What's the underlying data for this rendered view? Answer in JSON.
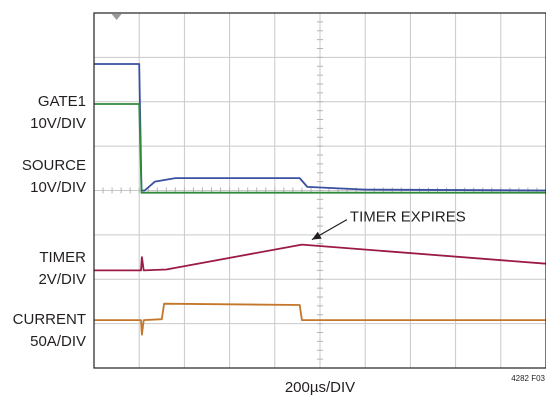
{
  "chart_data": {
    "type": "line",
    "title": "",
    "xlabel": "200µs/DIV",
    "figure_id": "4282 F03",
    "grid": true,
    "x_divisions": 10,
    "y_divisions": 8,
    "x_range_div": [
      0,
      10
    ],
    "y_range_div": [
      0,
      8
    ],
    "annotation": "TIMER EXPIRES",
    "channel_labels": [
      {
        "name": "GATE1",
        "scale": "10V/DIV"
      },
      {
        "name": "SOURCE",
        "scale": "10V/DIV"
      },
      {
        "name": "TIMER",
        "scale": "2V/DIV"
      },
      {
        "name": "CURRENT",
        "scale": "50A/DIV"
      }
    ],
    "series": [
      {
        "name": "GATE1",
        "color": "#3a4fa0",
        "x_div": [
          0,
          1.0,
          1.05,
          1.12,
          1.35,
          1.8,
          4.55,
          4.72,
          6.0,
          10
        ],
        "y_div": [
          6.85,
          6.85,
          4.0,
          4.0,
          4.2,
          4.28,
          4.28,
          4.08,
          4.02,
          4.0
        ]
      },
      {
        "name": "SOURCE",
        "color": "#2f8a3b",
        "x_div": [
          0,
          1.0,
          1.05,
          1.12,
          10
        ],
        "y_div": [
          5.95,
          5.95,
          3.95,
          3.95,
          3.95
        ]
      },
      {
        "name": "TIMER",
        "color": "#9b1b45",
        "x_div": [
          0,
          1.04,
          1.06,
          1.1,
          1.6,
          4.6,
          10
        ],
        "y_div": [
          2.2,
          2.2,
          2.5,
          2.2,
          2.22,
          2.78,
          2.35
        ]
      },
      {
        "name": "CURRENT",
        "color": "#c4762a",
        "x_div": [
          0,
          1.04,
          1.06,
          1.1,
          1.5,
          1.55,
          4.55,
          4.6,
          10
        ],
        "y_div": [
          1.08,
          1.08,
          0.75,
          1.08,
          1.1,
          1.45,
          1.42,
          1.08,
          1.08
        ]
      }
    ]
  }
}
